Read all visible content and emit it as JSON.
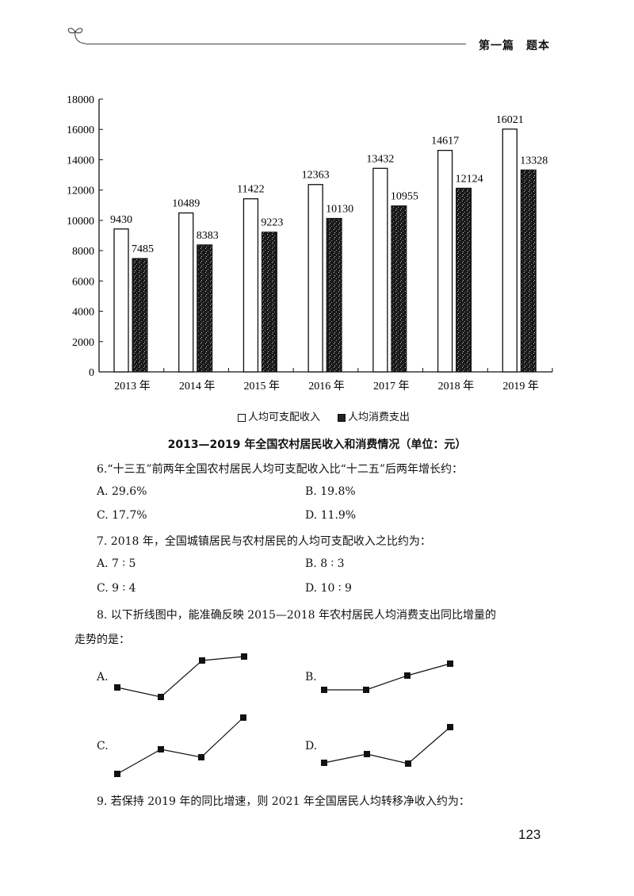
{
  "header": {
    "section_title": "第一篇　题本"
  },
  "chart_data": {
    "type": "bar",
    "title": "2013—2019 年全国农村居民收入和消费情况（单位：元）",
    "xlabel": "",
    "ylabel": "",
    "ylim": [
      0,
      18000
    ],
    "yticks": [
      0,
      2000,
      4000,
      6000,
      8000,
      10000,
      12000,
      14000,
      16000,
      18000
    ],
    "categories": [
      "2013 年",
      "2014 年",
      "2015 年",
      "2016 年",
      "2017 年",
      "2018 年",
      "2019 年"
    ],
    "series": [
      {
        "name": "人均可支配收入",
        "color": "#ffffff",
        "values": [
          9430,
          10489,
          11422,
          12363,
          13432,
          14617,
          16021
        ]
      },
      {
        "name": "人均消费支出",
        "color": "#222222",
        "values": [
          7485,
          8383,
          9223,
          10130,
          10955,
          12124,
          13328
        ]
      }
    ],
    "grid": false,
    "legend_position": "bottom"
  },
  "legend": {
    "income": "人均可支配收入",
    "expense": "人均消费支出"
  },
  "caption": "2013—2019 年全国农村居民收入和消费情况（单位：元）",
  "questions": {
    "q6": {
      "text": "6.“十三五”前两年全国农村居民人均可支配收入比“十二五”后两年增长约：",
      "options": [
        "A. 29.6%",
        "B. 19.8%",
        "C. 17.7%",
        "D. 11.9%"
      ]
    },
    "q7": {
      "text": "7. 2018 年，全国城镇居民与农村居民的人均可支配收入之比约为：",
      "options": [
        "A. 7 ∶ 5",
        "B. 8 ∶ 3",
        "C. 9 ∶ 4",
        "D. 10 ∶ 9"
      ]
    },
    "q8": {
      "line1": "8. 以下折线图中，能准确反映 2015—2018 年农村居民人均消费支出同比增量的",
      "line2": "走势的是：",
      "options": [
        {
          "label": "A.",
          "points": [
            [
              148,
              867
            ],
            [
              203,
              879
            ],
            [
              255,
              833
            ],
            [
              308,
              828
            ]
          ]
        },
        {
          "label": "B.",
          "points": [
            [
              409,
              870
            ],
            [
              462,
              870
            ],
            [
              514,
              852
            ],
            [
              568,
              837
            ]
          ]
        },
        {
          "label": "C.",
          "points": [
            [
              148,
              976
            ],
            [
              203,
              945
            ],
            [
              254,
              955
            ],
            [
              307,
              905
            ]
          ]
        },
        {
          "label": "D.",
          "points": [
            [
              409,
              962
            ],
            [
              463,
              951
            ],
            [
              515,
              963
            ],
            [
              568,
              917
            ]
          ]
        }
      ]
    },
    "q9": {
      "text": "9. 若保持 2019 年的同比增速，则 2021 年全国居民人均转移净收入约为："
    }
  },
  "page_number": "123"
}
